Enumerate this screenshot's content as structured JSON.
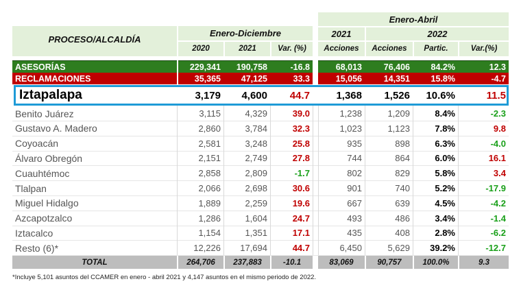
{
  "header": {
    "proceso": "PROCESO/ALCALDÍA",
    "enero_diciembre": "Enero-Diciembre",
    "enero_abril": "Enero-Abril",
    "year_2021": "2021",
    "year_2022": "2022",
    "cols": [
      "2020",
      "2021",
      "Var. (%)",
      "Acciones",
      "Acciones",
      "Partic.",
      "Var.(%)"
    ]
  },
  "asesorias": {
    "name": "ASESORÍAS",
    "v2020": "229,341",
    "v2021": "190,758",
    "var": "-16.8",
    "a2021": "68,013",
    "a2022": "76,406",
    "partic": "84.2%",
    "var2": "12.3"
  },
  "reclamaciones": {
    "name": "RECLAMACIONES",
    "v2020": "35,365",
    "v2021": "47,125",
    "var": "33.3",
    "a2021": "15,056",
    "a2022": "14,351",
    "partic": "15.8%",
    "var2": "-4.7"
  },
  "highlight": {
    "name": "Iztapalapa",
    "v2020": "3,179",
    "v2021": "4,600",
    "var": "44.7",
    "a2021": "1,368",
    "a2022": "1,526",
    "partic": "10.6%",
    "var2": "11.5"
  },
  "rows": [
    {
      "name": "Benito Juárez",
      "v2020": "3,115",
      "v2021": "4,329",
      "var": "39.0",
      "a2021": "1,238",
      "a2022": "1,209",
      "partic": "8.4%",
      "var2": "-2.3"
    },
    {
      "name": "Gustavo A. Madero",
      "v2020": "2,860",
      "v2021": "3,784",
      "var": "32.3",
      "a2021": "1,023",
      "a2022": "1,123",
      "partic": "7.8%",
      "var2": "9.8"
    },
    {
      "name": "Coyoacán",
      "v2020": "2,581",
      "v2021": "3,248",
      "var": "25.8",
      "a2021": "935",
      "a2022": "898",
      "partic": "6.3%",
      "var2": "-4.0"
    },
    {
      "name": "Álvaro Obregón",
      "v2020": "2,151",
      "v2021": "2,749",
      "var": "27.8",
      "a2021": "744",
      "a2022": "864",
      "partic": "6.0%",
      "var2": "16.1"
    },
    {
      "name": "Cuauhtémoc",
      "v2020": "2,858",
      "v2021": "2,809",
      "var": "-1.7",
      "a2021": "802",
      "a2022": "829",
      "partic": "5.8%",
      "var2": "3.4"
    },
    {
      "name": "Tlalpan",
      "v2020": "2,066",
      "v2021": "2,698",
      "var": "30.6",
      "a2021": "901",
      "a2022": "740",
      "partic": "5.2%",
      "var2": "-17.9"
    },
    {
      "name": "Miguel Hidalgo",
      "v2020": "1,889",
      "v2021": "2,259",
      "var": "19.6",
      "a2021": "667",
      "a2022": "639",
      "partic": "4.5%",
      "var2": "-4.2"
    },
    {
      "name": "Azcapotzalco",
      "v2020": "1,286",
      "v2021": "1,604",
      "var": "24.7",
      "a2021": "493",
      "a2022": "486",
      "partic": "3.4%",
      "var2": "-1.4"
    },
    {
      "name": "Iztacalco",
      "v2020": "1,154",
      "v2021": "1,351",
      "var": "17.1",
      "a2021": "435",
      "a2022": "408",
      "partic": "2.8%",
      "var2": "-6.2"
    },
    {
      "name": "Resto (6)*",
      "v2020": "12,226",
      "v2021": "17,694",
      "var": "44.7",
      "a2021": "6,450",
      "a2022": "5,629",
      "partic": "39.2%",
      "var2": "-12.7"
    }
  ],
  "total": {
    "name": "TOTAL",
    "v2020": "264,706",
    "v2021": "237,883",
    "var": "-10.1",
    "a2021": "83,069",
    "a2022": "90,757",
    "partic": "100.0%",
    "var2": "9.3"
  },
  "footnote": "*Incluye 5,101 asuntos del CCAMER en enero - abril 2021 y 4,147 asuntos en el mismo periodo de 2022.",
  "colors": {
    "green_band": "#2e7d1f",
    "red_band": "#c00000",
    "highlight_border": "#1f9bd7",
    "header_bg": "#e3f0da",
    "total_bg": "#bdbdbd"
  }
}
